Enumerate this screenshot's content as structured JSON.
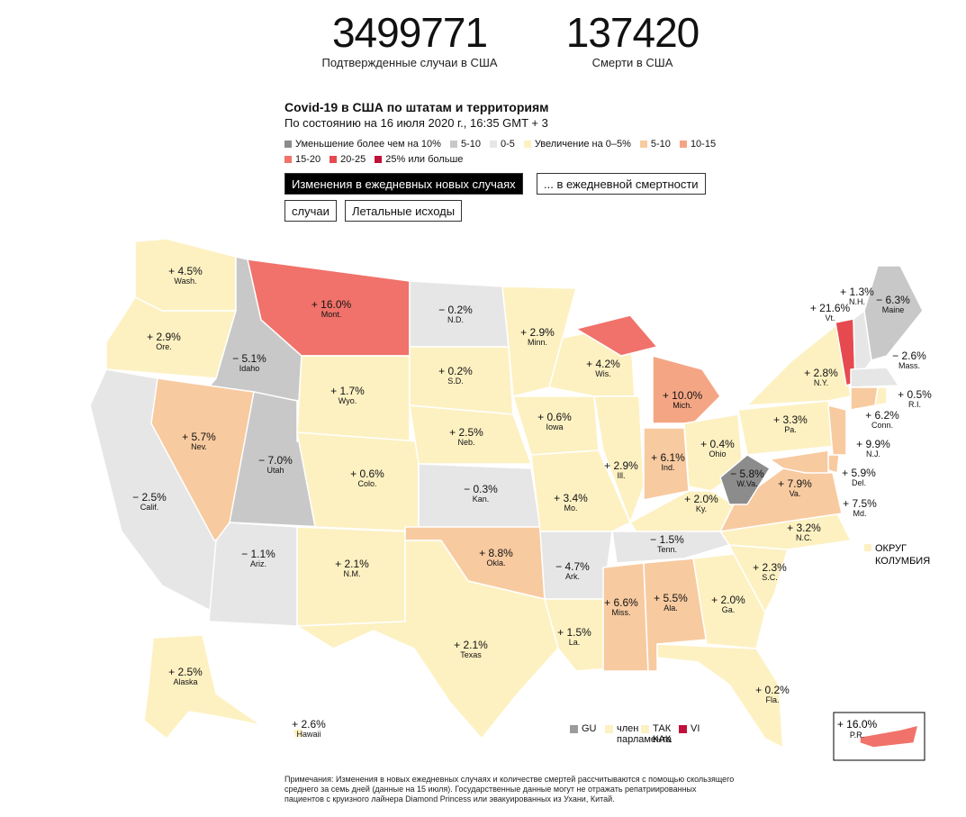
{
  "header": {
    "cases_total": "3499771",
    "cases_label": "Подтвержденные случаи в США",
    "deaths_total": "137420",
    "deaths_label": "Смерти в США"
  },
  "title": "Covid-19 в США по штатам и территориям",
  "subtitle": "По состоянию на 16 июля 2020 г., 16:35 GMT + 3",
  "legend": [
    {
      "label": "Уменьшение более чем на 10%",
      "color": "#8c8c8c"
    },
    {
      "label": "5-10",
      "color": "#c8c8c8"
    },
    {
      "label": "0-5",
      "color": "#e6e6e6"
    },
    {
      "label": "Увеличение на 0–5%",
      "color": "#fdf1c2"
    },
    {
      "label": "5-10",
      "color": "#f8caa0"
    },
    {
      "label": "10-15",
      "color": "#f4a684"
    },
    {
      "label": "15-20",
      "color": "#f0726a"
    },
    {
      "label": "20-25",
      "color": "#e64a4f"
    },
    {
      "label": "25% или больше",
      "color": "#c0113a"
    }
  ],
  "buttons": {
    "metric_cases": "Изменения в ежедневных новых случаях",
    "metric_deaths": "... в ежедневной смертности",
    "view_cases": "случаи",
    "view_deaths": "Летальные исходы"
  },
  "states": [
    {
      "abbr": "Wash.",
      "value": "+ 4.5%"
    },
    {
      "abbr": "Ore.",
      "value": "+ 2.9%"
    },
    {
      "abbr": "Calif.",
      "value": "− 2.5%"
    },
    {
      "abbr": "Idaho",
      "value": "− 5.1%"
    },
    {
      "abbr": "Nev.",
      "value": "+ 5.7%"
    },
    {
      "abbr": "Mont.",
      "value": "+ 16.0%"
    },
    {
      "abbr": "Wyo.",
      "value": "+ 1.7%"
    },
    {
      "abbr": "Utah",
      "value": "− 7.0%"
    },
    {
      "abbr": "Ariz.",
      "value": "− 1.1%"
    },
    {
      "abbr": "Colo.",
      "value": "+ 0.6%"
    },
    {
      "abbr": "N.M.",
      "value": "+ 2.1%"
    },
    {
      "abbr": "N.D.",
      "value": "− 0.2%"
    },
    {
      "abbr": "S.D.",
      "value": "+ 0.2%"
    },
    {
      "abbr": "Neb.",
      "value": "+ 2.5%"
    },
    {
      "abbr": "Kan.",
      "value": "− 0.3%"
    },
    {
      "abbr": "Okla.",
      "value": "+ 8.8%"
    },
    {
      "abbr": "Texas",
      "value": "+ 2.1%"
    },
    {
      "abbr": "Minn.",
      "value": "+ 2.9%"
    },
    {
      "abbr": "Iowa",
      "value": "+ 0.6%"
    },
    {
      "abbr": "Mo.",
      "value": "+ 3.4%"
    },
    {
      "abbr": "Ark.",
      "value": "− 4.7%"
    },
    {
      "abbr": "La.",
      "value": "+ 1.5%"
    },
    {
      "abbr": "Wis.",
      "value": "+ 4.2%"
    },
    {
      "abbr": "Ill.",
      "value": "+ 2.9%"
    },
    {
      "abbr": "Mich.",
      "value": "+ 10.0%"
    },
    {
      "abbr": "Ind.",
      "value": "+ 6.1%"
    },
    {
      "abbr": "Ohio",
      "value": "+ 0.4%"
    },
    {
      "abbr": "Ky.",
      "value": "+ 2.0%"
    },
    {
      "abbr": "Tenn.",
      "value": "− 1.5%"
    },
    {
      "abbr": "Miss.",
      "value": "+ 6.6%"
    },
    {
      "abbr": "Ala.",
      "value": "+ 5.5%"
    },
    {
      "abbr": "Ga.",
      "value": "+ 2.0%"
    },
    {
      "abbr": "Fla.",
      "value": "+ 0.2%"
    },
    {
      "abbr": "S.C.",
      "value": "+ 2.3%"
    },
    {
      "abbr": "N.C.",
      "value": "+ 3.2%"
    },
    {
      "abbr": "Va.",
      "value": "+ 7.9%"
    },
    {
      "abbr": "W.Va.",
      "value": "− 5.8%"
    },
    {
      "abbr": "Pa.",
      "value": "+ 3.3%"
    },
    {
      "abbr": "N.Y.",
      "value": "+ 2.8%"
    },
    {
      "abbr": "Vt.",
      "value": "+ 21.6%"
    },
    {
      "abbr": "N.H.",
      "value": "+ 1.3%"
    },
    {
      "abbr": "Maine",
      "value": "− 6.3%"
    },
    {
      "abbr": "Mass.",
      "value": "− 2.6%"
    },
    {
      "abbr": "R.I.",
      "value": "+ 0.5%"
    },
    {
      "abbr": "Conn.",
      "value": "+ 6.2%"
    },
    {
      "abbr": "N.J.",
      "value": "+ 9.9%"
    },
    {
      "abbr": "Del.",
      "value": "+ 5.9%"
    },
    {
      "abbr": "Md.",
      "value": "+ 7.5%"
    },
    {
      "abbr": "Alaska",
      "value": "+ 2.5%"
    },
    {
      "abbr": "Hawaii",
      "value": "+ 2.6%"
    },
    {
      "abbr": "P.R.",
      "value": "+ 16.0%"
    }
  ],
  "dc_label_1": "ОКРУГ",
  "dc_label_2": "КОЛУМБИЯ",
  "territories": [
    {
      "label": "GU",
      "color": "#9b9b9b"
    },
    {
      "label": "член",
      "label2": "парламента",
      "color": "#fdf1c2"
    },
    {
      "label": "ТАК",
      "label2": "КАК",
      "color": "#fdf1c2"
    },
    {
      "label": "VI",
      "color": "#c0113a"
    }
  ],
  "note": "Примечания: Изменения в новых ежедневных случаях и количестве смертей рассчитываются с помощью скользящего среднего за семь дней (данные на 15 июля). Государственные данные могут не отражать репатриированных пациентов с круизного лайнера Diamond Princess или эвакуированных из Ухани, Китай."
}
